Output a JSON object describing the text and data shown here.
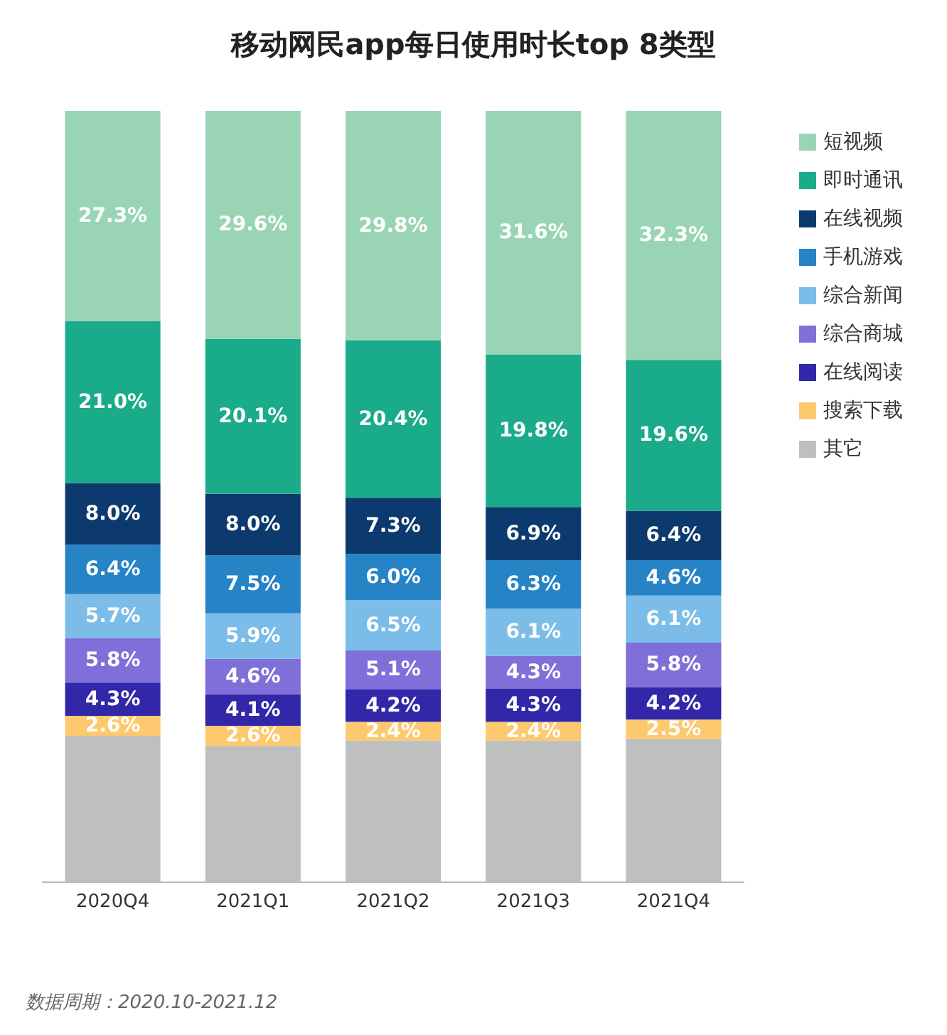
{
  "chart_data": {
    "type": "bar",
    "title": "移动网民app每日使用时长top 8类型",
    "categories": [
      "2020Q4",
      "2021Q1",
      "2021Q2",
      "2021Q3",
      "2021Q4"
    ],
    "stacked": true,
    "ylim": [
      0,
      100
    ],
    "tick_labels": "x",
    "legend": "right",
    "series": [
      {
        "name": "其它",
        "color": "#bfbfbf",
        "values": [
          18.9,
          17.6,
          18.3,
          18.3,
          18.5
        ],
        "value_labels": [
          null,
          null,
          null,
          null,
          null
        ]
      },
      {
        "name": "搜索下载",
        "color": "#fdc96f",
        "values": [
          2.6,
          2.6,
          2.4,
          2.4,
          2.5
        ],
        "value_labels": [
          "2.6%",
          "2.6%",
          "2.4%",
          "2.4%",
          "2.5%"
        ]
      },
      {
        "name": "在线阅读",
        "color": "#3227a8",
        "values": [
          4.3,
          4.1,
          4.2,
          4.3,
          4.2
        ],
        "value_labels": [
          "4.3%",
          "4.1%",
          "4.2%",
          "4.3%",
          "4.2%"
        ]
      },
      {
        "name": "综合商城",
        "color": "#7f6fd8",
        "values": [
          5.8,
          4.6,
          5.1,
          4.3,
          5.8
        ],
        "value_labels": [
          "5.8%",
          "4.6%",
          "5.1%",
          "4.3%",
          "5.8%"
        ]
      },
      {
        "name": "综合新闻",
        "color": "#7bbde8",
        "values": [
          5.7,
          5.9,
          6.5,
          6.1,
          6.1
        ],
        "value_labels": [
          "5.7%",
          "5.9%",
          "6.5%",
          "6.1%",
          "6.1%"
        ]
      },
      {
        "name": "手机游戏",
        "color": "#2583c6",
        "values": [
          6.4,
          7.5,
          6.0,
          6.3,
          4.6
        ],
        "value_labels": [
          "6.4%",
          "7.5%",
          "6.0%",
          "6.3%",
          "4.6%"
        ]
      },
      {
        "name": "在线视频",
        "color": "#0d3a6e",
        "values": [
          8.0,
          8.0,
          7.3,
          6.9,
          6.4
        ],
        "value_labels": [
          "8.0%",
          "8.0%",
          "7.3%",
          "6.9%",
          "6.4%"
        ]
      },
      {
        "name": "即时通讯",
        "color": "#1aab8a",
        "values": [
          21.0,
          20.1,
          20.4,
          19.8,
          19.6
        ],
        "value_labels": [
          "21.0%",
          "20.1%",
          "20.4%",
          "19.8%",
          "19.6%"
        ]
      },
      {
        "name": "短视频",
        "color": "#99d5b5",
        "values": [
          27.3,
          29.6,
          29.8,
          31.6,
          32.3
        ],
        "value_labels": [
          "27.3%",
          "29.6%",
          "29.8%",
          "31.6%",
          "32.3%"
        ]
      }
    ],
    "annotations": [
      "数据周期：2020.10-2021.12"
    ]
  }
}
